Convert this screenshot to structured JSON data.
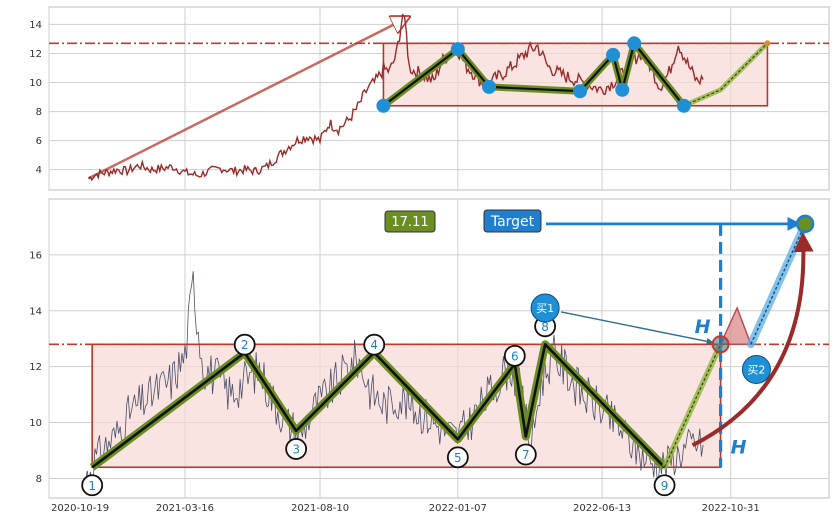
{
  "colors": {
    "background": "#ffffff",
    "grid": "#cfcfcf",
    "axes_frame": "#bdbdbd",
    "price_line_top": "#9b2a2a",
    "price_line_bottom": "#4a4f6a",
    "channel_fill": "#f6d9d4",
    "channel_border": "#b5382a",
    "reference_line": "#c0392b",
    "zigzag_outer": "#6b8e23",
    "zigzag_inner": "#111111",
    "marker_blue": "#1f8fd6",
    "target_label_bg": "#1f7fcf",
    "value_label_bg": "#6b8e23",
    "projection_blue": "#1f7fcf",
    "curve_red": "#9b2a2a",
    "text_blue": "#1f7fcf"
  },
  "chart_data": [
    {
      "type": "line",
      "panel": "top",
      "yticks": [
        4,
        6,
        8,
        10,
        12,
        14
      ],
      "ylim": [
        2.6,
        15.2
      ],
      "xlim": [
        "2020-10-19",
        "2023-02-15"
      ],
      "grid": true,
      "series": [
        {
          "x": [
            "2020-12-01",
            "2020-12-10",
            "2020-12-20",
            "2021-01-01",
            "2021-01-12",
            "2021-01-25",
            "2021-02-08",
            "2021-02-20",
            "2021-03-03",
            "2021-03-16",
            "2021-03-30",
            "2021-04-12",
            "2021-04-25",
            "2021-05-08",
            "2021-05-20",
            "2021-06-01",
            "2021-06-13",
            "2021-06-25",
            "2021-07-07",
            "2021-07-18",
            "2021-07-28",
            "2021-08-10",
            "2021-08-20",
            "2021-08-30",
            "2021-09-10",
            "2021-09-20",
            "2021-10-01",
            "2021-10-10",
            "2021-10-18",
            "2021-10-25",
            "2021-11-01",
            "2021-11-08",
            "2021-11-12",
            "2021-11-15",
            "2021-11-20",
            "2021-11-28",
            "2021-12-05",
            "2021-12-12",
            "2021-12-20",
            "2021-12-27",
            "2022-01-03",
            "2022-01-07",
            "2022-01-15",
            "2022-01-25",
            "2022-02-05",
            "2022-02-15",
            "2022-02-25",
            "2022-03-07",
            "2022-03-15",
            "2022-03-25",
            "2022-04-04",
            "2022-04-15",
            "2022-04-25",
            "2022-05-05",
            "2022-05-15",
            "2022-05-25",
            "2022-06-04",
            "2022-06-13",
            "2022-06-25",
            "2022-07-05",
            "2022-07-15",
            "2022-07-25",
            "2022-08-04",
            "2022-08-15",
            "2022-08-25",
            "2022-09-04",
            "2022-09-14",
            "2022-09-24",
            "2022-10-01"
          ],
          "y": [
            3.4,
            3.7,
            3.8,
            4.0,
            3.9,
            4.3,
            4.0,
            4.1,
            4.2,
            3.8,
            3.6,
            3.9,
            4.1,
            3.9,
            4.0,
            3.9,
            4.2,
            4.9,
            5.6,
            6.1,
            6.3,
            6.0,
            7.2,
            6.8,
            7.4,
            8.3,
            9.6,
            10.1,
            10.9,
            10.8,
            11.9,
            14.7,
            13.3,
            11.1,
            10.8,
            10.6,
            10.3,
            10.1,
            11.4,
            11.9,
            12.2,
            12.3,
            11.2,
            10.6,
            9.8,
            10.2,
            10.6,
            11.1,
            11.6,
            12.2,
            12.5,
            11.1,
            10.7,
            10.4,
            10.2,
            10.0,
            9.7,
            9.5,
            10.0,
            10.6,
            11.5,
            12.0,
            11.2,
            9.7,
            10.7,
            12.7,
            11.3,
            10.1,
            10.2
          ]
        }
      ],
      "pattern_points": {
        "x": [
          "2021-10-18",
          "2022-01-07",
          "2022-02-10",
          "2022-05-20",
          "2022-06-25",
          "2022-07-05",
          "2022-07-18",
          "2022-09-10"
        ],
        "y": [
          8.4,
          12.3,
          9.7,
          9.4,
          11.9,
          9.5,
          12.7,
          8.4
        ]
      },
      "channel": {
        "x": [
          "2021-10-18",
          "2022-12-10"
        ],
        "y": [
          8.4,
          12.7
        ]
      },
      "reference_level": 12.7,
      "arrow": {
        "from": [
          "2020-12-01",
          3.4
        ],
        "to": [
          "2021-11-12",
          14.7
        ]
      },
      "projection": {
        "x": [
          "2022-09-10",
          "2022-10-20",
          "2022-12-10"
        ],
        "y": [
          8.4,
          9.5,
          12.7
        ]
      },
      "end_marker": {
        "x": "2022-12-10",
        "y": 12.7
      }
    },
    {
      "type": "line",
      "panel": "bottom",
      "xticks": [
        "2020-10-19",
        "2021-03-16",
        "2021-08-10",
        "2022-01-07",
        "2022-06-13",
        "2022-10-31"
      ],
      "yticks": [
        8,
        10,
        12,
        14,
        16
      ],
      "ylim": [
        7.3,
        18.0
      ],
      "xlim": [
        "2020-10-19",
        "2023-02-15"
      ],
      "grid": true,
      "series": [
        {
          "x": [
            "2020-11-28",
            "2020-12-08",
            "2020-12-18",
            "2021-01-01",
            "2021-01-15",
            "2021-02-01",
            "2021-02-15",
            "2021-03-01",
            "2021-03-16",
            "2021-03-25",
            "2021-04-05",
            "2021-04-20",
            "2021-05-05",
            "2021-05-20",
            "2021-06-05",
            "2021-06-20",
            "2021-07-05",
            "2021-07-20",
            "2021-08-05",
            "2021-08-20",
            "2021-09-05",
            "2021-09-20",
            "2021-10-05",
            "2021-10-20",
            "2021-11-05",
            "2021-11-20",
            "2021-12-05",
            "2021-12-20",
            "2022-01-05",
            "2022-01-20",
            "2022-02-05",
            "2022-02-20",
            "2022-03-05",
            "2022-03-15",
            "2022-03-28",
            "2022-04-08",
            "2022-04-20",
            "2022-05-05",
            "2022-05-20",
            "2022-06-05",
            "2022-06-20",
            "2022-07-05",
            "2022-07-20",
            "2022-08-05",
            "2022-08-20",
            "2022-09-05",
            "2022-09-20",
            "2022-10-01"
          ],
          "y": [
            8.0,
            8.7,
            9.1,
            9.6,
            10.4,
            10.8,
            11.2,
            11.5,
            12.4,
            15.0,
            12.0,
            11.6,
            11.0,
            11.5,
            11.9,
            10.8,
            10.0,
            9.6,
            10.6,
            11.1,
            11.8,
            12.3,
            11.1,
            10.6,
            10.9,
            10.5,
            10.2,
            9.8,
            9.5,
            10.0,
            10.8,
            11.5,
            12.1,
            11.2,
            9.2,
            11.5,
            12.4,
            11.9,
            11.1,
            10.7,
            10.2,
            9.7,
            9.0,
            8.6,
            8.5,
            8.9,
            9.3,
            9.2
          ]
        }
      ],
      "pattern_points": {
        "x": [
          "2020-12-05",
          "2021-05-20",
          "2021-07-15",
          "2021-10-08",
          "2022-01-07",
          "2022-03-10",
          "2022-03-22",
          "2022-04-12",
          "2022-08-20"
        ],
        "y": [
          8.4,
          12.5,
          9.7,
          12.5,
          9.4,
          12.1,
          9.5,
          12.8,
          8.4
        ]
      },
      "point_labels": [
        "1",
        "2",
        "3",
        "4",
        "5",
        "6",
        "7",
        "8",
        "9"
      ],
      "channel": {
        "x": [
          "2020-12-05",
          "2022-10-20"
        ],
        "y": [
          8.4,
          12.8
        ]
      },
      "reference_level": 12.8,
      "height_labels": [
        "H",
        "H"
      ],
      "value_badge": "17.11",
      "target_label": "Target",
      "target_point": {
        "x": "2023-01-20",
        "y": 17.11
      },
      "target_guide": {
        "x": "2022-10-20",
        "y": 17.11
      },
      "breakout_point": {
        "x": "2022-10-20",
        "y": 12.8
      },
      "buy_points": [
        {
          "label": "买1",
          "x": "2022-04-12",
          "y": 14.1
        },
        {
          "label": "买2",
          "x": "2022-11-28",
          "y": 11.9
        }
      ],
      "pullback": {
        "x": [
          "2022-10-20",
          "2022-11-07",
          "2022-11-22"
        ],
        "y": [
          12.8,
          14.1,
          12.8
        ]
      },
      "projection": {
        "x": [
          "2022-08-20",
          "2022-10-20",
          "2022-11-22",
          "2023-01-20"
        ],
        "y": [
          8.4,
          12.8,
          12.8,
          17.11
        ]
      }
    }
  ]
}
